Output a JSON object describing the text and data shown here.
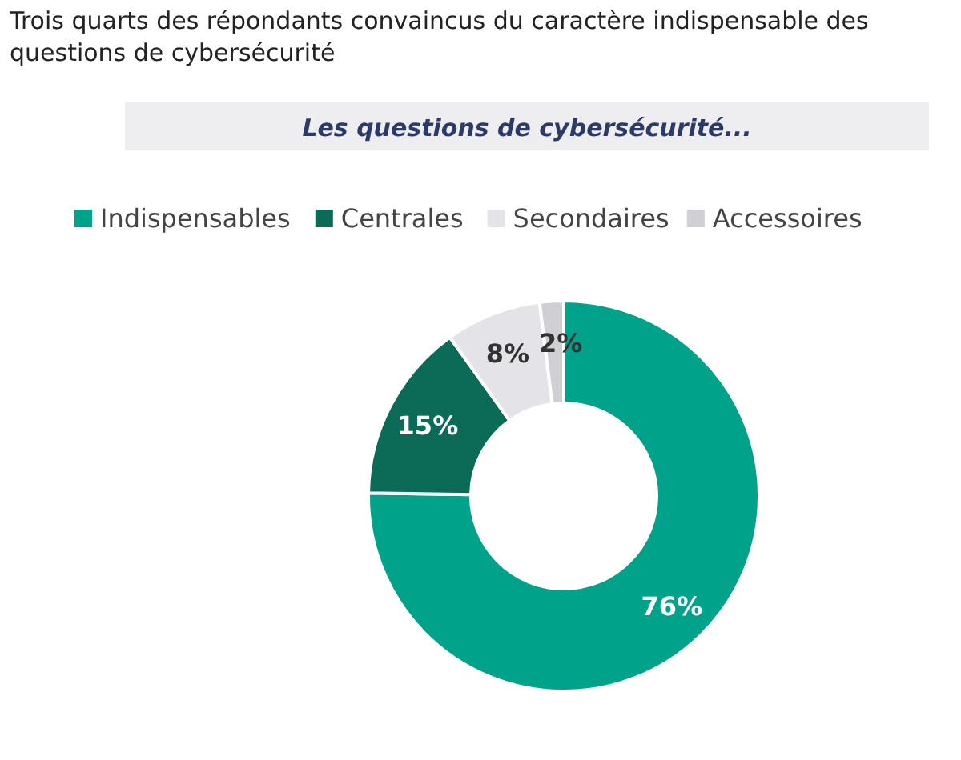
{
  "chart_data": {
    "type": "donut",
    "title": "Trois quarts des répondants convaincus du caractère indispensable des questions de cybersécurité",
    "subtitle": "Les questions de cybersécurité...",
    "categories": [
      "Indispensables",
      "Centrales",
      "Secondaires",
      "Accessoires"
    ],
    "values": [
      76,
      15,
      8,
      2
    ],
    "colors": [
      "#00a389",
      "#0b6b57",
      "#e4e4e8",
      "#cfcfd4"
    ],
    "value_labels": [
      "76%",
      "15%",
      "8%",
      "2%"
    ],
    "legend": "top"
  }
}
